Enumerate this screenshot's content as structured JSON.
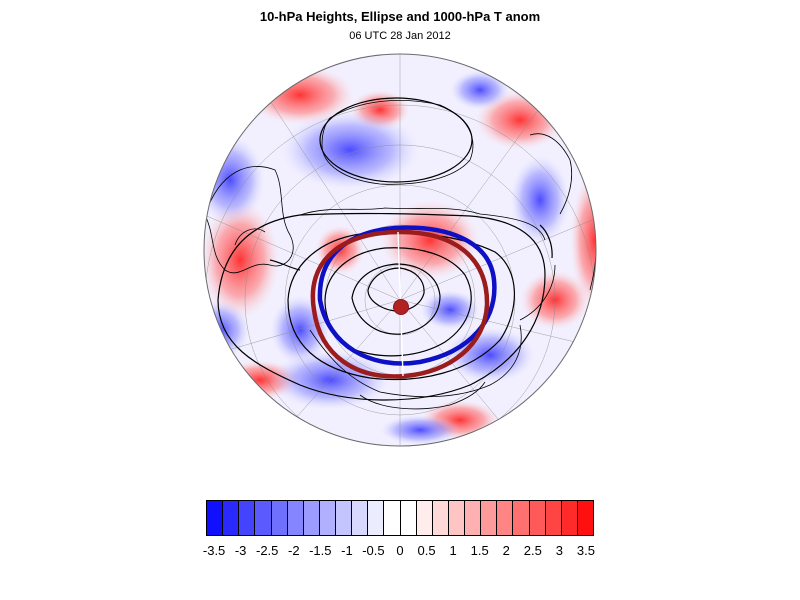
{
  "header": {
    "title": "10-hPa Heights, Ellipse and 1000-hPa T anom",
    "subtitle": "06 UTC 28 Jan 2012"
  },
  "map": {
    "projection": "orthographic polar view (Northern Hemisphere)",
    "field": "1000-hPa T anom",
    "contours": "10-hPa Heights",
    "overlays": [
      "Ellipse"
    ],
    "colors": {
      "negative": "#0000ff",
      "positive": "#ff0000",
      "ellipse_blue": "#0d10c4",
      "ellipse_red": "#9b1c1c",
      "center_dot": "#b22222",
      "contour_line": "#000000"
    }
  },
  "colorbar": {
    "labels": [
      "-3.5",
      "-3",
      "-2.5",
      "-2",
      "-1.5",
      "-1",
      "-0.5",
      "0",
      "0.5",
      "1",
      "1.5",
      "2",
      "2.5",
      "3",
      "3.5"
    ],
    "colors": [
      "#1010ff",
      "#2a2aff",
      "#4444ff",
      "#5a5aff",
      "#7070ff",
      "#8585ff",
      "#9a9aff",
      "#b0b0ff",
      "#c4c4ff",
      "#d8d8ff",
      "#ececff",
      "#ffffff",
      "#ffffff",
      "#ffecec",
      "#ffd8d8",
      "#ffc4c4",
      "#ffb0b0",
      "#ff9a9a",
      "#ff8585",
      "#ff7070",
      "#ff5a5a",
      "#ff4444",
      "#ff2a2a",
      "#ff1010"
    ]
  }
}
